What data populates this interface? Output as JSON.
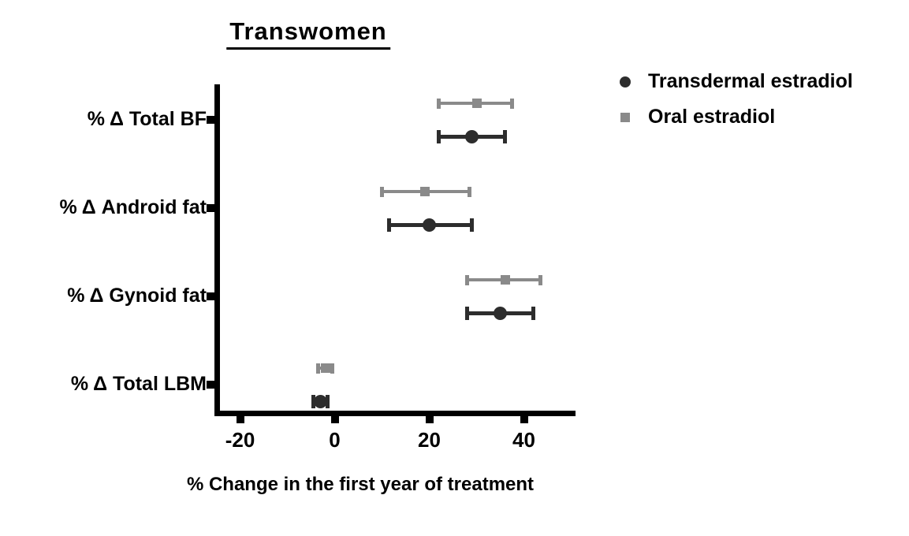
{
  "chart_data": {
    "type": "scatter",
    "subtype": "horizontal-dot-plot-with-error-bars",
    "title": "Transwomen",
    "xlabel": "% Change in the first year of treatment",
    "categories": [
      "% Δ Total BF",
      "% Δ Android fat",
      "% Δ Gynoid fat",
      "% Δ Total LBM"
    ],
    "series": [
      {
        "name": "Transdermal estradiol",
        "marker": "circle",
        "color": "#2d2d2d",
        "values": [
          29,
          20,
          35,
          -3
        ],
        "error_low": [
          22,
          11.5,
          28,
          -4.5
        ],
        "error_high": [
          36,
          29,
          42,
          -1.5
        ]
      },
      {
        "name": "Oral estradiol",
        "marker": "square",
        "color": "#8a8a8a",
        "values": [
          30,
          19,
          36,
          -2
        ],
        "error_low": [
          22,
          10,
          28,
          -3.5
        ],
        "error_high": [
          37.5,
          28.5,
          43.5,
          -0.5
        ]
      }
    ],
    "xlim": [
      -25,
      51
    ],
    "x_ticks": [
      -20,
      0,
      20,
      40
    ],
    "grid": false,
    "legend_position": "top-right",
    "axis_color": "#000000"
  }
}
